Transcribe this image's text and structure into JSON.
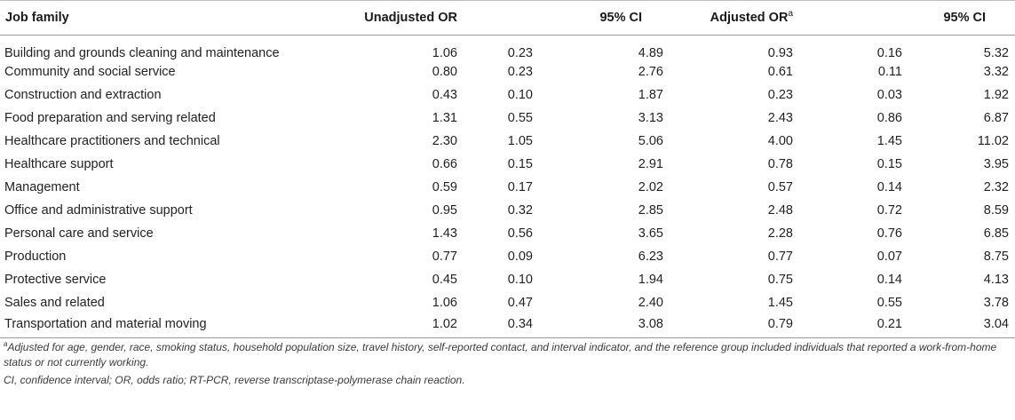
{
  "table": {
    "headers": {
      "job_family": "Job family",
      "unadjusted_or": "Unadjusted OR",
      "ci_1": "95% CI",
      "adjusted_or": "Adjusted OR",
      "adjusted_or_sup": "a",
      "ci_2": "95% CI"
    },
    "rows": [
      {
        "job": "Building and grounds cleaning and maintenance",
        "uor": "1.06",
        "ulo": "0.23",
        "uhi": "4.89",
        "aor": "0.93",
        "alo": "0.16",
        "ahi": "5.32"
      },
      {
        "job": "Community and social service",
        "uor": "0.80",
        "ulo": "0.23",
        "uhi": "2.76",
        "aor": "0.61",
        "alo": "0.11",
        "ahi": "3.32"
      },
      {
        "job": "Construction and extraction",
        "uor": "0.43",
        "ulo": "0.10",
        "uhi": "1.87",
        "aor": "0.23",
        "alo": "0.03",
        "ahi": "1.92"
      },
      {
        "job": "Food preparation and serving related",
        "uor": "1.31",
        "ulo": "0.55",
        "uhi": "3.13",
        "aor": "2.43",
        "alo": "0.86",
        "ahi": "6.87"
      },
      {
        "job": "Healthcare practitioners and technical",
        "uor": "2.30",
        "ulo": "1.05",
        "uhi": "5.06",
        "aor": "4.00",
        "alo": "1.45",
        "ahi": "11.02"
      },
      {
        "job": "Healthcare support",
        "uor": "0.66",
        "ulo": "0.15",
        "uhi": "2.91",
        "aor": "0.78",
        "alo": "0.15",
        "ahi": "3.95"
      },
      {
        "job": "Management",
        "uor": "0.59",
        "ulo": "0.17",
        "uhi": "2.02",
        "aor": "0.57",
        "alo": "0.14",
        "ahi": "2.32"
      },
      {
        "job": "Office and administrative support",
        "uor": "0.95",
        "ulo": "0.32",
        "uhi": "2.85",
        "aor": "2.48",
        "alo": "0.72",
        "ahi": "8.59"
      },
      {
        "job": "Personal care and service",
        "uor": "1.43",
        "ulo": "0.56",
        "uhi": "3.65",
        "aor": "2.28",
        "alo": "0.76",
        "ahi": "6.85"
      },
      {
        "job": "Production",
        "uor": "0.77",
        "ulo": "0.09",
        "uhi": "6.23",
        "aor": "0.77",
        "alo": "0.07",
        "ahi": "8.75"
      },
      {
        "job": "Protective service",
        "uor": "0.45",
        "ulo": "0.10",
        "uhi": "1.94",
        "aor": "0.75",
        "alo": "0.14",
        "ahi": "4.13"
      },
      {
        "job": "Sales and related",
        "uor": "1.06",
        "ulo": "0.47",
        "uhi": "2.40",
        "aor": "1.45",
        "alo": "0.55",
        "ahi": "3.78"
      },
      {
        "job": "Transportation and material moving",
        "uor": "1.02",
        "ulo": "0.34",
        "uhi": "3.08",
        "aor": "0.79",
        "alo": "0.21",
        "ahi": "3.04"
      }
    ]
  },
  "footnotes": {
    "a_marker": "a",
    "a_text": "Adjusted for age, gender, race, smoking status, household population size, travel history, self-reported contact, and interval indicator, and the reference group included individuals that reported a work-from-home status or not currently working.",
    "abbreviations": "CI, confidence interval; OR, odds ratio; RT-PCR, reverse transcriptase-polymerase chain reaction."
  }
}
